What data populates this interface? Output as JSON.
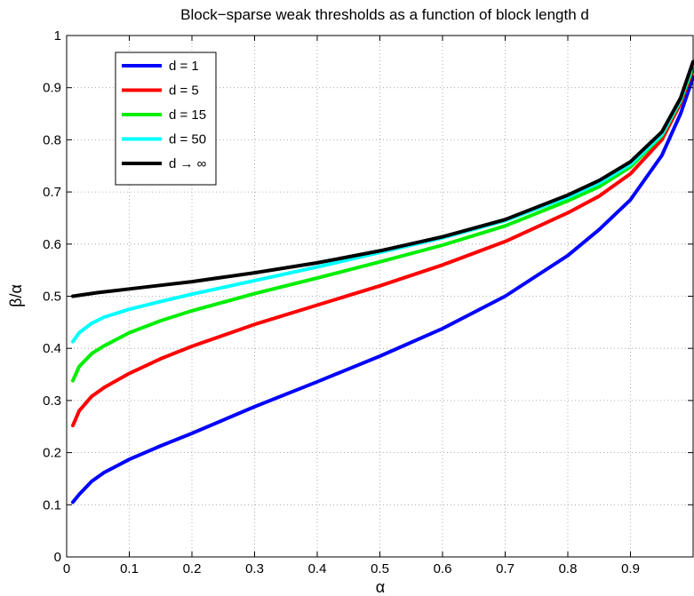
{
  "chart_data": {
    "type": "line",
    "title": "Block−sparse weak thresholds as a function of block length d",
    "xlabel": "α",
    "ylabel": "β/α",
    "xlim": [
      0,
      1
    ],
    "ylim": [
      0,
      1
    ],
    "xticks": [
      0,
      0.1,
      0.2,
      0.3,
      0.4,
      0.5,
      0.6,
      0.7,
      0.8,
      0.9
    ],
    "yticks": [
      0,
      0.1,
      0.2,
      0.3,
      0.4,
      0.5,
      0.6,
      0.7,
      0.8,
      0.9,
      1
    ],
    "grid": true,
    "legend_position": "top-left",
    "series": [
      {
        "name": "d = 1",
        "color": "#0000ff",
        "x": [
          0.01,
          0.02,
          0.04,
          0.06,
          0.1,
          0.15,
          0.2,
          0.3,
          0.4,
          0.5,
          0.6,
          0.7,
          0.8,
          0.85,
          0.9,
          0.95,
          0.98,
          1.0
        ],
        "y": [
          0.105,
          0.12,
          0.145,
          0.162,
          0.187,
          0.213,
          0.237,
          0.288,
          0.336,
          0.385,
          0.438,
          0.5,
          0.578,
          0.628,
          0.685,
          0.77,
          0.85,
          0.92
        ]
      },
      {
        "name": "d = 5",
        "color": "#ff0000",
        "x": [
          0.01,
          0.02,
          0.04,
          0.06,
          0.1,
          0.15,
          0.2,
          0.3,
          0.4,
          0.5,
          0.6,
          0.7,
          0.8,
          0.85,
          0.9,
          0.95,
          0.98,
          1.0
        ],
        "y": [
          0.252,
          0.28,
          0.308,
          0.325,
          0.352,
          0.38,
          0.404,
          0.446,
          0.483,
          0.52,
          0.56,
          0.605,
          0.66,
          0.692,
          0.735,
          0.8,
          0.87,
          0.935
        ]
      },
      {
        "name": "d = 15",
        "color": "#00ee00",
        "x": [
          0.01,
          0.02,
          0.04,
          0.06,
          0.1,
          0.15,
          0.2,
          0.3,
          0.4,
          0.5,
          0.6,
          0.7,
          0.8,
          0.85,
          0.9,
          0.95,
          0.98,
          1.0
        ],
        "y": [
          0.338,
          0.365,
          0.39,
          0.405,
          0.43,
          0.453,
          0.472,
          0.505,
          0.535,
          0.566,
          0.598,
          0.635,
          0.683,
          0.71,
          0.748,
          0.808,
          0.875,
          0.94
        ]
      },
      {
        "name": "d = 50",
        "color": "#00ffff",
        "x": [
          0.01,
          0.02,
          0.04,
          0.06,
          0.1,
          0.15,
          0.2,
          0.3,
          0.4,
          0.5,
          0.6,
          0.7,
          0.8,
          0.85,
          0.9,
          0.95,
          0.98,
          1.0
        ],
        "y": [
          0.413,
          0.43,
          0.448,
          0.46,
          0.475,
          0.49,
          0.504,
          0.53,
          0.556,
          0.584,
          0.612,
          0.645,
          0.69,
          0.717,
          0.753,
          0.81,
          0.877,
          0.945
        ]
      },
      {
        "name": "d → ∞",
        "color": "#000000",
        "x": [
          0.01,
          0.05,
          0.1,
          0.15,
          0.2,
          0.3,
          0.4,
          0.5,
          0.6,
          0.7,
          0.8,
          0.85,
          0.9,
          0.95,
          0.98,
          1.0
        ],
        "y": [
          0.5,
          0.507,
          0.514,
          0.521,
          0.528,
          0.545,
          0.564,
          0.587,
          0.614,
          0.647,
          0.694,
          0.722,
          0.758,
          0.815,
          0.88,
          0.95
        ]
      }
    ]
  }
}
